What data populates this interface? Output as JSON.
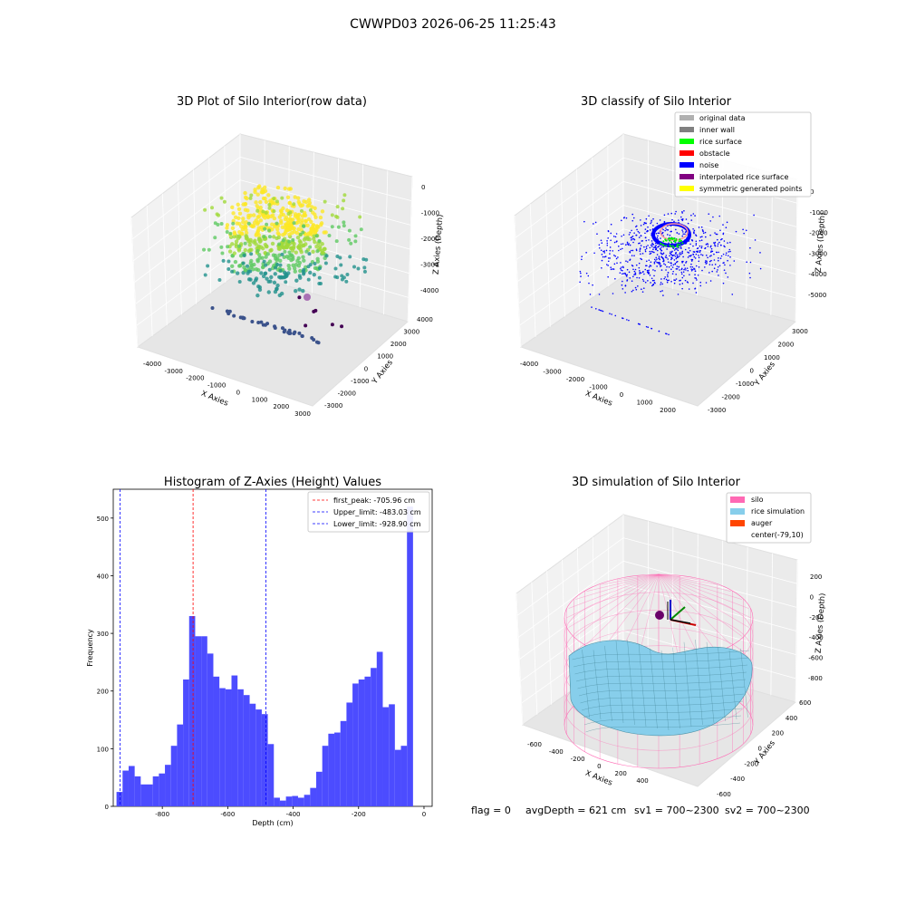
{
  "suptitle": "CWWPD03 2026-06-25 11:25:43",
  "chart_data": [
    {
      "type": "scatter",
      "title": "3D Plot of Silo Interior(row data)",
      "xlabel": "X Axies",
      "ylabel": "Y Axies",
      "zlabel": "Z Axies (Depth)",
      "x_ticks": [
        "-4000",
        "-3000",
        "-2000",
        "-1000",
        "0",
        "1000",
        "2000",
        "3000"
      ],
      "y_ticks": [
        "-3000",
        "-2000",
        "-1000",
        "0",
        "1000",
        "2000",
        "3000",
        "4000"
      ],
      "z_ticks": [
        "0",
        "-1000",
        "-2000",
        "-3000",
        "-4000"
      ],
      "colormap": "viridis",
      "grid": true
    },
    {
      "type": "scatter",
      "title": "3D classify of Silo Interior",
      "xlabel": "X Axies",
      "ylabel": "Y Axies",
      "zlabel": "Z Axies (Depth)",
      "x_ticks": [
        "-4000",
        "-3000",
        "-2000",
        "-1000",
        "0",
        "1000",
        "2000"
      ],
      "y_ticks": [
        "-3000",
        "-2000",
        "-1000",
        "0",
        "1000",
        "2000",
        "3000"
      ],
      "z_ticks": [
        "0",
        "-1000",
        "-2000",
        "-3000",
        "-4000",
        "-5000"
      ],
      "legend": [
        {
          "label": "original data",
          "color": "#b0b0b0"
        },
        {
          "label": "inner wall",
          "color": "#808080"
        },
        {
          "label": "rice surface",
          "color": "#00ff00"
        },
        {
          "label": "obstacle",
          "color": "#ff0000"
        },
        {
          "label": "noise",
          "color": "#0000ff"
        },
        {
          "label": "interpolated rice surface",
          "color": "#800080"
        },
        {
          "label": "symmetric generated points",
          "color": "#ffff00"
        }
      ],
      "legend_placement": "top-right",
      "grid": true
    },
    {
      "type": "bar",
      "title": "Histogram of Z-Axies (Height) Values",
      "xlabel": "Depth (cm)",
      "ylabel": "Frequency",
      "bar_color": "#4c4cff",
      "bin_width": 18.5,
      "bin_start": -940,
      "values": [
        25,
        62,
        70,
        52,
        38,
        38,
        52,
        57,
        72,
        105,
        142,
        220,
        330,
        295,
        295,
        265,
        225,
        205,
        203,
        227,
        203,
        193,
        178,
        168,
        160,
        108,
        15,
        10,
        17,
        18,
        15,
        20,
        32,
        60,
        105,
        126,
        128,
        148,
        180,
        213,
        220,
        225,
        240,
        268,
        172,
        177,
        98,
        105,
        520
      ],
      "xlim": [
        -950,
        25
      ],
      "ylim": [
        0,
        550
      ],
      "x_ticks": [
        "-800",
        "-600",
        "-400",
        "-200",
        "0"
      ],
      "y_ticks": [
        "0",
        "100",
        "200",
        "300",
        "400",
        "500"
      ],
      "vlines": [
        {
          "label": "first_peak: -705.96 cm",
          "x": -705.96,
          "color": "#ff0000"
        },
        {
          "label": "Upper_limit: -483.03 cm",
          "x": -483.03,
          "color": "#0000ff"
        },
        {
          "label": "Lower_limit: -928.90 cm",
          "x": -928.9,
          "color": "#0000ff"
        }
      ],
      "legend_placement": "top-right",
      "grid": false
    },
    {
      "type": "area",
      "title": "3D simulation of Silo Interior",
      "xlabel": "X Axies",
      "ylabel": "Y Axies",
      "zlabel": "Z Axies (Depth)",
      "x_ticks": [
        "-600",
        "-400",
        "-200",
        "0",
        "200",
        "400"
      ],
      "y_ticks": [
        "-600",
        "-400",
        "-200",
        "0",
        "200",
        "400",
        "600"
      ],
      "z_ticks": [
        "200",
        "0",
        "-200",
        "-400",
        "-600",
        "-800"
      ],
      "legend": [
        {
          "label": "silo",
          "color": "#ff69b4"
        },
        {
          "label": "rice simulation",
          "color": "#87ceeb"
        },
        {
          "label": "auger",
          "color": "#ff4500"
        },
        {
          "label": "center(-79,10)",
          "color": ""
        }
      ],
      "legend_placement": "top-right",
      "grid": true
    }
  ],
  "footer": {
    "flag": "flag = 0",
    "avg_depth": "avgDepth = 621 cm",
    "sv1": "sv1 = 700~2300",
    "sv2": "sv2 = 700~2300"
  }
}
